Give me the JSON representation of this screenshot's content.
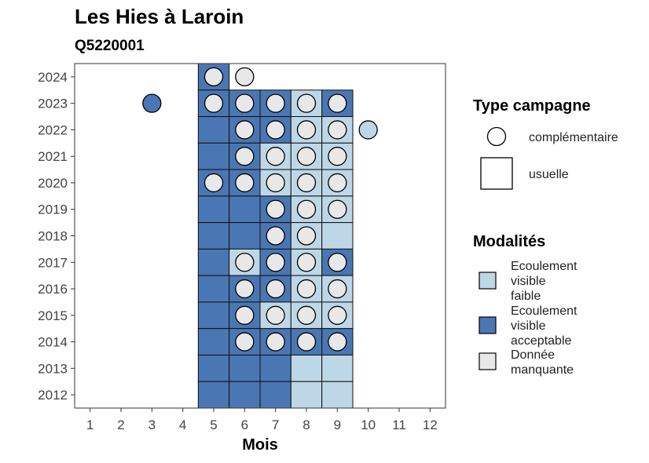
{
  "chart_data": {
    "type": "heatmap",
    "title": "Les Hies à Laroin",
    "subtitle": "Q5220001",
    "xlabel": "Mois",
    "ylabel": "",
    "x_ticks": [
      1,
      2,
      3,
      4,
      5,
      6,
      7,
      8,
      9,
      10,
      11,
      12
    ],
    "y_ticks": [
      2012,
      2013,
      2014,
      2015,
      2016,
      2017,
      2018,
      2019,
      2020,
      2021,
      2022,
      2023,
      2024
    ],
    "xlim": [
      0.5,
      12.5
    ],
    "ylim": [
      2011.5,
      2024.5
    ],
    "grid": false,
    "colors": {
      "faible": "#bdd7e7",
      "acceptable": "#4a77b4",
      "manquante": "#e8e8e8"
    },
    "legend_type": {
      "title": "Type campagne",
      "items": [
        {
          "label": "complémentaire",
          "shape": "circle"
        },
        {
          "label": "usuelle",
          "shape": "square"
        }
      ]
    },
    "legend_modalites": {
      "title": "Modalités",
      "items": [
        {
          "key": "faible",
          "lines": [
            "Ecoulement",
            "visible",
            "faible"
          ]
        },
        {
          "key": "acceptable",
          "lines": [
            "Ecoulement",
            "visible",
            "acceptable"
          ]
        },
        {
          "key": "manquante",
          "lines": [
            "Donnée",
            "manquante"
          ]
        }
      ]
    },
    "tiles": [
      {
        "year": 2024,
        "month": 5,
        "modalite": "acceptable"
      },
      {
        "year": 2023,
        "month": 5,
        "modalite": "acceptable"
      },
      {
        "year": 2023,
        "month": 6,
        "modalite": "acceptable"
      },
      {
        "year": 2023,
        "month": 7,
        "modalite": "acceptable"
      },
      {
        "year": 2023,
        "month": 8,
        "modalite": "faible"
      },
      {
        "year": 2023,
        "month": 9,
        "modalite": "acceptable"
      },
      {
        "year": 2022,
        "month": 5,
        "modalite": "acceptable"
      },
      {
        "year": 2022,
        "month": 6,
        "modalite": "acceptable"
      },
      {
        "year": 2022,
        "month": 7,
        "modalite": "acceptable"
      },
      {
        "year": 2022,
        "month": 8,
        "modalite": "faible"
      },
      {
        "year": 2022,
        "month": 9,
        "modalite": "faible"
      },
      {
        "year": 2021,
        "month": 5,
        "modalite": "acceptable"
      },
      {
        "year": 2021,
        "month": 6,
        "modalite": "acceptable"
      },
      {
        "year": 2021,
        "month": 7,
        "modalite": "faible"
      },
      {
        "year": 2021,
        "month": 8,
        "modalite": "faible"
      },
      {
        "year": 2021,
        "month": 9,
        "modalite": "faible"
      },
      {
        "year": 2020,
        "month": 5,
        "modalite": "acceptable"
      },
      {
        "year": 2020,
        "month": 6,
        "modalite": "acceptable"
      },
      {
        "year": 2020,
        "month": 7,
        "modalite": "faible"
      },
      {
        "year": 2020,
        "month": 8,
        "modalite": "faible"
      },
      {
        "year": 2020,
        "month": 9,
        "modalite": "faible"
      },
      {
        "year": 2019,
        "month": 5,
        "modalite": "acceptable"
      },
      {
        "year": 2019,
        "month": 6,
        "modalite": "acceptable"
      },
      {
        "year": 2019,
        "month": 7,
        "modalite": "acceptable"
      },
      {
        "year": 2019,
        "month": 8,
        "modalite": "faible"
      },
      {
        "year": 2019,
        "month": 9,
        "modalite": "faible"
      },
      {
        "year": 2018,
        "month": 5,
        "modalite": "acceptable"
      },
      {
        "year": 2018,
        "month": 6,
        "modalite": "acceptable"
      },
      {
        "year": 2018,
        "month": 7,
        "modalite": "acceptable"
      },
      {
        "year": 2018,
        "month": 8,
        "modalite": "faible"
      },
      {
        "year": 2018,
        "month": 9,
        "modalite": "faible"
      },
      {
        "year": 2017,
        "month": 5,
        "modalite": "acceptable"
      },
      {
        "year": 2017,
        "month": 6,
        "modalite": "faible"
      },
      {
        "year": 2017,
        "month": 7,
        "modalite": "acceptable"
      },
      {
        "year": 2017,
        "month": 8,
        "modalite": "faible"
      },
      {
        "year": 2017,
        "month": 9,
        "modalite": "acceptable"
      },
      {
        "year": 2016,
        "month": 5,
        "modalite": "acceptable"
      },
      {
        "year": 2016,
        "month": 6,
        "modalite": "acceptable"
      },
      {
        "year": 2016,
        "month": 7,
        "modalite": "acceptable"
      },
      {
        "year": 2016,
        "month": 8,
        "modalite": "faible"
      },
      {
        "year": 2016,
        "month": 9,
        "modalite": "faible"
      },
      {
        "year": 2015,
        "month": 5,
        "modalite": "acceptable"
      },
      {
        "year": 2015,
        "month": 6,
        "modalite": "acceptable"
      },
      {
        "year": 2015,
        "month": 7,
        "modalite": "faible"
      },
      {
        "year": 2015,
        "month": 8,
        "modalite": "faible"
      },
      {
        "year": 2015,
        "month": 9,
        "modalite": "faible"
      },
      {
        "year": 2014,
        "month": 5,
        "modalite": "acceptable"
      },
      {
        "year": 2014,
        "month": 6,
        "modalite": "acceptable"
      },
      {
        "year": 2014,
        "month": 7,
        "modalite": "acceptable"
      },
      {
        "year": 2014,
        "month": 8,
        "modalite": "acceptable"
      },
      {
        "year": 2014,
        "month": 9,
        "modalite": "acceptable"
      },
      {
        "year": 2013,
        "month": 5,
        "modalite": "acceptable"
      },
      {
        "year": 2013,
        "month": 6,
        "modalite": "acceptable"
      },
      {
        "year": 2013,
        "month": 7,
        "modalite": "acceptable"
      },
      {
        "year": 2013,
        "month": 8,
        "modalite": "faible"
      },
      {
        "year": 2013,
        "month": 9,
        "modalite": "faible"
      },
      {
        "year": 2012,
        "month": 5,
        "modalite": "acceptable"
      },
      {
        "year": 2012,
        "month": 6,
        "modalite": "acceptable"
      },
      {
        "year": 2012,
        "month": 7,
        "modalite": "acceptable"
      },
      {
        "year": 2012,
        "month": 8,
        "modalite": "faible"
      },
      {
        "year": 2012,
        "month": 9,
        "modalite": "faible"
      }
    ],
    "points": [
      {
        "year": 2024,
        "month": 5,
        "modalite": "manquante"
      },
      {
        "year": 2024,
        "month": 6,
        "modalite": "manquante"
      },
      {
        "year": 2023,
        "month": 3,
        "modalite": "acceptable"
      },
      {
        "year": 2023,
        "month": 5,
        "modalite": "manquante"
      },
      {
        "year": 2023,
        "month": 6,
        "modalite": "manquante"
      },
      {
        "year": 2023,
        "month": 7,
        "modalite": "manquante"
      },
      {
        "year": 2023,
        "month": 8,
        "modalite": "manquante"
      },
      {
        "year": 2023,
        "month": 9,
        "modalite": "manquante"
      },
      {
        "year": 2022,
        "month": 6,
        "modalite": "manquante"
      },
      {
        "year": 2022,
        "month": 7,
        "modalite": "manquante"
      },
      {
        "year": 2022,
        "month": 8,
        "modalite": "manquante"
      },
      {
        "year": 2022,
        "month": 9,
        "modalite": "manquante"
      },
      {
        "year": 2022,
        "month": 10,
        "modalite": "faible"
      },
      {
        "year": 2021,
        "month": 6,
        "modalite": "manquante"
      },
      {
        "year": 2021,
        "month": 7,
        "modalite": "manquante"
      },
      {
        "year": 2021,
        "month": 8,
        "modalite": "manquante"
      },
      {
        "year": 2021,
        "month": 9,
        "modalite": "manquante"
      },
      {
        "year": 2020,
        "month": 5,
        "modalite": "manquante"
      },
      {
        "year": 2020,
        "month": 6,
        "modalite": "manquante"
      },
      {
        "year": 2020,
        "month": 7,
        "modalite": "manquante"
      },
      {
        "year": 2020,
        "month": 8,
        "modalite": "manquante"
      },
      {
        "year": 2020,
        "month": 9,
        "modalite": "manquante"
      },
      {
        "year": 2019,
        "month": 7,
        "modalite": "manquante"
      },
      {
        "year": 2019,
        "month": 8,
        "modalite": "manquante"
      },
      {
        "year": 2019,
        "month": 9,
        "modalite": "manquante"
      },
      {
        "year": 2018,
        "month": 7,
        "modalite": "manquante"
      },
      {
        "year": 2018,
        "month": 8,
        "modalite": "manquante"
      },
      {
        "year": 2017,
        "month": 6,
        "modalite": "manquante"
      },
      {
        "year": 2017,
        "month": 7,
        "modalite": "manquante"
      },
      {
        "year": 2017,
        "month": 8,
        "modalite": "manquante"
      },
      {
        "year": 2017,
        "month": 9,
        "modalite": "manquante"
      },
      {
        "year": 2016,
        "month": 6,
        "modalite": "manquante"
      },
      {
        "year": 2016,
        "month": 7,
        "modalite": "manquante"
      },
      {
        "year": 2016,
        "month": 8,
        "modalite": "manquante"
      },
      {
        "year": 2016,
        "month": 9,
        "modalite": "manquante"
      },
      {
        "year": 2015,
        "month": 6,
        "modalite": "manquante"
      },
      {
        "year": 2015,
        "month": 7,
        "modalite": "manquante"
      },
      {
        "year": 2015,
        "month": 8,
        "modalite": "manquante"
      },
      {
        "year": 2015,
        "month": 9,
        "modalite": "manquante"
      },
      {
        "year": 2014,
        "month": 6,
        "modalite": "manquante"
      },
      {
        "year": 2014,
        "month": 7,
        "modalite": "manquante"
      },
      {
        "year": 2014,
        "month": 8,
        "modalite": "manquante"
      },
      {
        "year": 2014,
        "month": 9,
        "modalite": "manquante"
      }
    ]
  }
}
